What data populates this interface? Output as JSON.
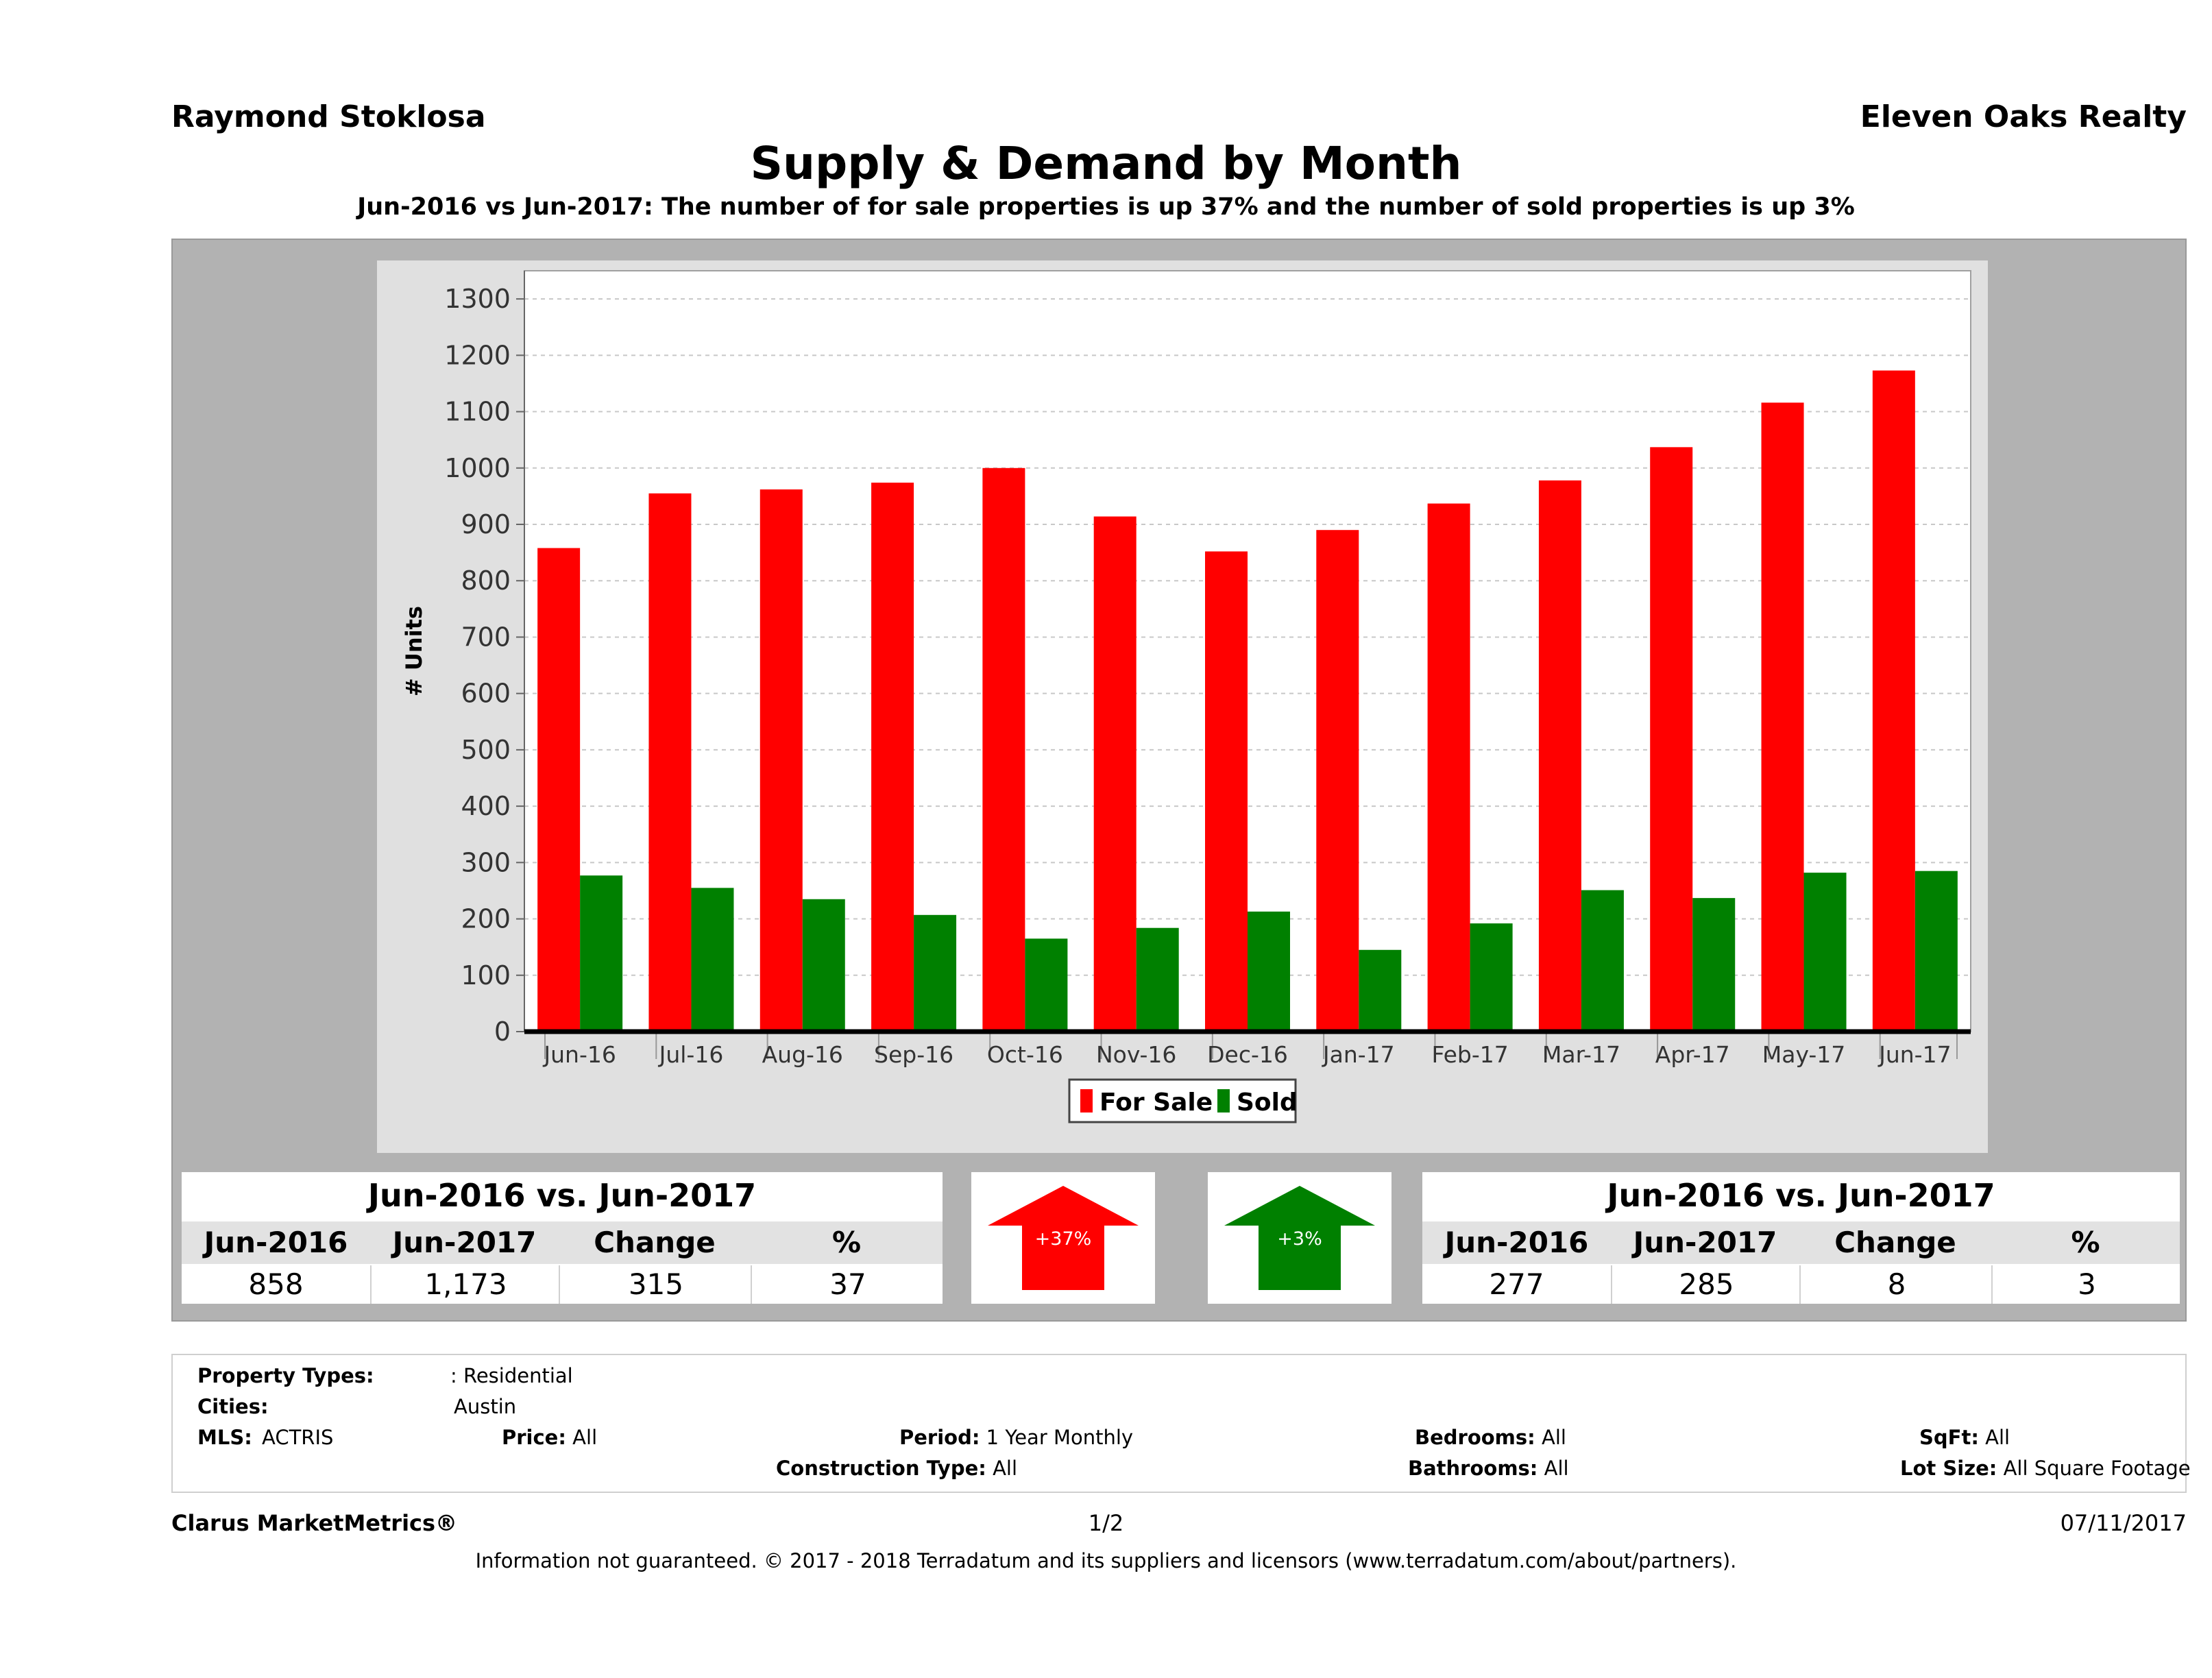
{
  "header": {
    "agent": "Raymond Stoklosa",
    "brokerage": "Eleven Oaks Realty",
    "title": "Supply & Demand by Month",
    "subtitle": "Jun-2016 vs Jun-2017: The number of for sale properties is up 37% and the number of sold properties is up 3%"
  },
  "chart_data": {
    "type": "bar",
    "title": "",
    "xlabel": "",
    "ylabel": "# Units",
    "ylim": [
      0,
      1350
    ],
    "yticks": [
      0,
      100,
      200,
      300,
      400,
      500,
      600,
      700,
      800,
      900,
      1000,
      1100,
      1200,
      1300
    ],
    "grid": true,
    "legend": "bottom-center",
    "categories": [
      "Jun-16",
      "Jul-16",
      "Aug-16",
      "Sep-16",
      "Oct-16",
      "Nov-16",
      "Dec-16",
      "Jan-17",
      "Feb-17",
      "Mar-17",
      "Apr-17",
      "May-17",
      "Jun-17"
    ],
    "series": [
      {
        "name": "For Sale",
        "color": "#ff0000",
        "values": [
          858,
          955,
          962,
          974,
          1000,
          914,
          852,
          890,
          937,
          978,
          1037,
          1116,
          1173
        ]
      },
      {
        "name": "Sold",
        "color": "#008000",
        "values": [
          277,
          255,
          235,
          207,
          165,
          184,
          213,
          145,
          192,
          251,
          237,
          282,
          285
        ]
      }
    ]
  },
  "forsale_stats": {
    "title": "Jun-2016 vs. Jun-2017",
    "headers": [
      "Jun-2016",
      "Jun-2017",
      "Change",
      "%"
    ],
    "values": [
      "858",
      "1,173",
      "315",
      "37"
    ]
  },
  "sold_stats": {
    "title": "Jun-2016 vs. Jun-2017",
    "headers": [
      "Jun-2016",
      "Jun-2017",
      "Change",
      "%"
    ],
    "values": [
      "277",
      "285",
      "8",
      "3"
    ]
  },
  "arrows": {
    "forsale": {
      "label": "+37%",
      "color": "#ff0000"
    },
    "sold": {
      "label": "+3%",
      "color": "#008000"
    }
  },
  "criteria": {
    "property_types_label": "Property Types:",
    "property_types_value": ": Residential",
    "cities_label": "Cities:",
    "cities_value": "Austin",
    "mls_label": "MLS:",
    "mls_value": "ACTRIS",
    "price_label": "Price:",
    "price_value": "All",
    "period_label": "Period:",
    "period_value": "1 Year Monthly",
    "bedrooms_label": "Bedrooms:",
    "bedrooms_value": "All",
    "sqft_label": "SqFt:",
    "sqft_value": "All",
    "construction_label": "Construction Type:",
    "construction_value": "All",
    "bathrooms_label": "Bathrooms:",
    "bathrooms_value": "All",
    "lotsize_label": "Lot Size:",
    "lotsize_value": "All Square Footage"
  },
  "footer": {
    "product": "Clarus MarketMetrics®",
    "page": "1/2",
    "date": "07/11/2017",
    "disclaimer": "Information not guaranteed. © 2017 - 2018 Terradatum and its suppliers and licensors (www.terradatum.com/about/partners)."
  }
}
